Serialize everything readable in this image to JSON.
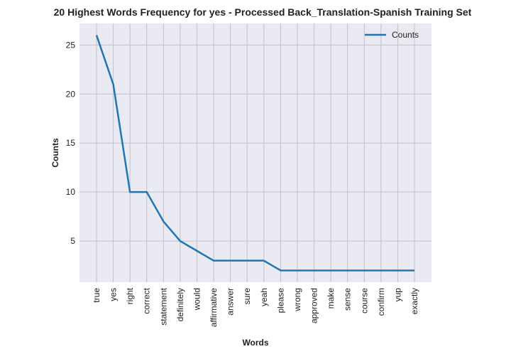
{
  "chart_data": {
    "type": "line",
    "title": "20 Highest Words Frequency for yes - Processed Back_Translation-Spanish Training Set",
    "xlabel": "Words",
    "ylabel": "Counts",
    "categories": [
      "true",
      "yes",
      "right",
      "correct",
      "statement",
      "definitely",
      "would",
      "affirmative",
      "answer",
      "sure",
      "yeah",
      "please",
      "wrong",
      "approved",
      "make",
      "sense",
      "course",
      "confirm",
      "yup",
      "exactly"
    ],
    "series": [
      {
        "name": "Counts",
        "values": [
          26,
          21,
          10,
          10,
          7,
          5,
          4,
          3,
          3,
          3,
          3,
          2,
          2,
          2,
          2,
          2,
          2,
          2,
          2,
          2
        ],
        "color": "#1f77b4"
      }
    ],
    "ylim": [
      0.8,
      27.2
    ],
    "yticks": [
      5,
      10,
      15,
      20,
      25
    ],
    "grid": true,
    "legend_position": "top-right",
    "background_color": "#eaeaf2",
    "grid_color": "#c0c0c8"
  }
}
